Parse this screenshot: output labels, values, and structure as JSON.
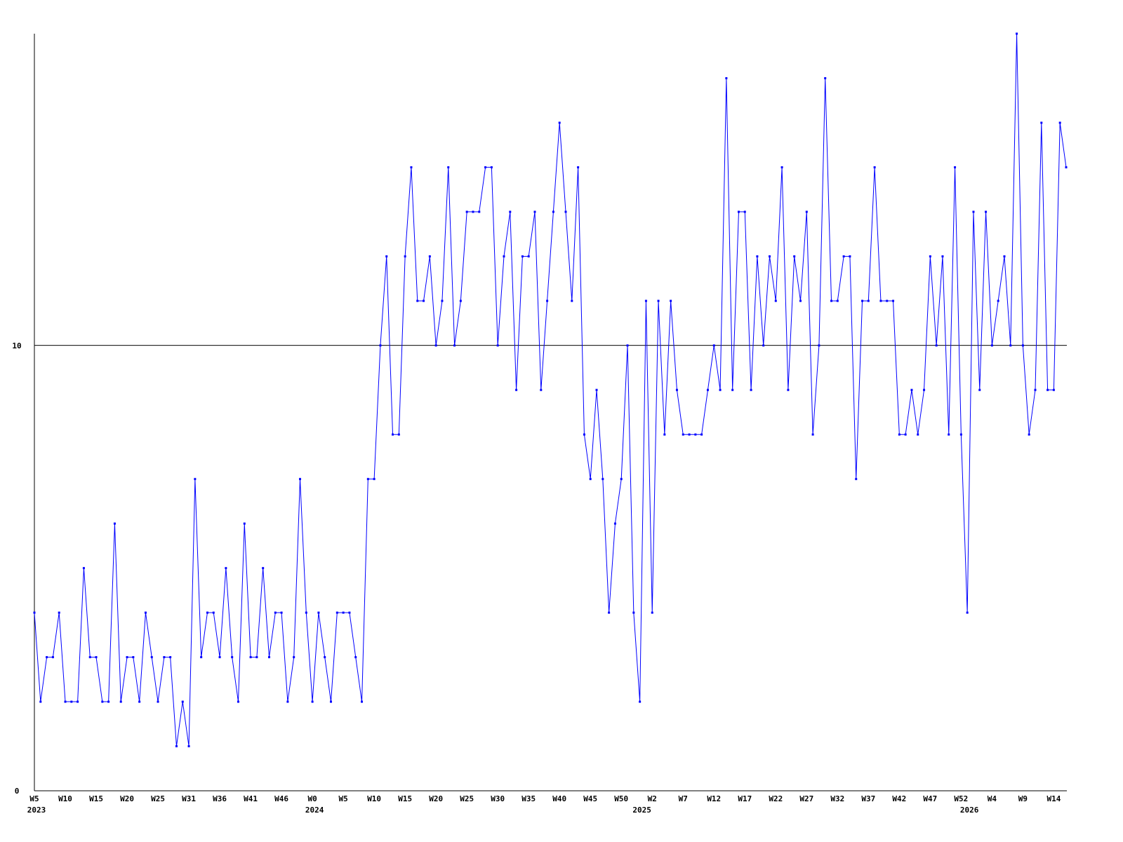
{
  "chart_data": {
    "type": "line",
    "categories": [
      "W5",
      null,
      null,
      null,
      null,
      "W10",
      null,
      null,
      null,
      null,
      "W15",
      null,
      null,
      null,
      null,
      "W20",
      null,
      null,
      null,
      null,
      "W25",
      null,
      null,
      null,
      null,
      "W31",
      null,
      null,
      null,
      null,
      "W36",
      null,
      null,
      null,
      null,
      "W41",
      null,
      null,
      null,
      null,
      "W46",
      null,
      null,
      null,
      null,
      "W0",
      null,
      null,
      null,
      null,
      "W5",
      null,
      null,
      null,
      null,
      "W10",
      null,
      null,
      null,
      null,
      "W15",
      null,
      null,
      null,
      null,
      "W20",
      null,
      null,
      null,
      null,
      "W25",
      null,
      null,
      null,
      null,
      "W30",
      null,
      null,
      null,
      null,
      "W35",
      null,
      null,
      null,
      null,
      "W40",
      null,
      null,
      null,
      null,
      "W45",
      null,
      null,
      null,
      null,
      "W50",
      null,
      null,
      null,
      null,
      "W2",
      null,
      null,
      null,
      null,
      "W7",
      null,
      null,
      null,
      null,
      "W12",
      null,
      null,
      null,
      null,
      "W17",
      null,
      null,
      null,
      null,
      "W22",
      null,
      null,
      null,
      null,
      "W27",
      null,
      null,
      null,
      null,
      "W32",
      null,
      null,
      null,
      null,
      "W37",
      null,
      null,
      null,
      null,
      "W42",
      null,
      null,
      null,
      null,
      "W47",
      null,
      null,
      null,
      null,
      "W52",
      null,
      null,
      null,
      null,
      "W4",
      null,
      null,
      null,
      null,
      "W9",
      null,
      null,
      null,
      null,
      "W14",
      null,
      null
    ],
    "years": [
      {
        "index": 0,
        "label": "2023"
      },
      {
        "index": 45,
        "label": "2024"
      },
      {
        "index": 98,
        "label": "2025"
      },
      {
        "index": 151,
        "label": "2026"
      }
    ],
    "values": [
      4,
      2,
      3,
      3,
      4,
      2,
      2,
      2,
      5,
      3,
      3,
      2,
      2,
      6,
      2,
      3,
      3,
      2,
      4,
      3,
      2,
      3,
      3,
      1,
      2,
      1,
      7,
      3,
      4,
      4,
      3,
      5,
      3,
      2,
      6,
      3,
      3,
      5,
      3,
      4,
      4,
      2,
      3,
      7,
      4,
      2,
      4,
      3,
      2,
      4,
      4,
      4,
      3,
      2,
      7,
      7,
      10,
      12,
      8,
      8,
      12,
      14,
      11,
      11,
      12,
      10,
      11,
      14,
      10,
      11,
      13,
      13,
      13,
      14,
      14,
      10,
      12,
      13,
      9,
      12,
      12,
      13,
      9,
      11,
      13,
      15,
      13,
      11,
      14,
      8,
      7,
      9,
      7,
      4,
      6,
      7,
      10,
      4,
      2,
      11,
      4,
      11,
      8,
      11,
      9,
      8,
      8,
      8,
      8,
      9,
      10,
      9,
      16,
      9,
      13,
      13,
      9,
      12,
      10,
      12,
      11,
      14,
      9,
      12,
      11,
      13,
      8,
      10,
      16,
      11,
      11,
      12,
      12,
      7,
      11,
      11,
      14,
      11,
      11,
      11,
      8,
      8,
      9,
      8,
      9,
      12,
      10,
      12,
      8,
      14,
      8,
      4,
      13,
      9,
      13,
      10,
      11,
      12,
      10,
      17,
      10,
      8,
      9,
      15,
      9,
      9,
      15,
      14
    ],
    "color": "#0000ff",
    "ylim": [
      0,
      17
    ],
    "yticks": [
      0,
      10
    ],
    "grid": true
  }
}
